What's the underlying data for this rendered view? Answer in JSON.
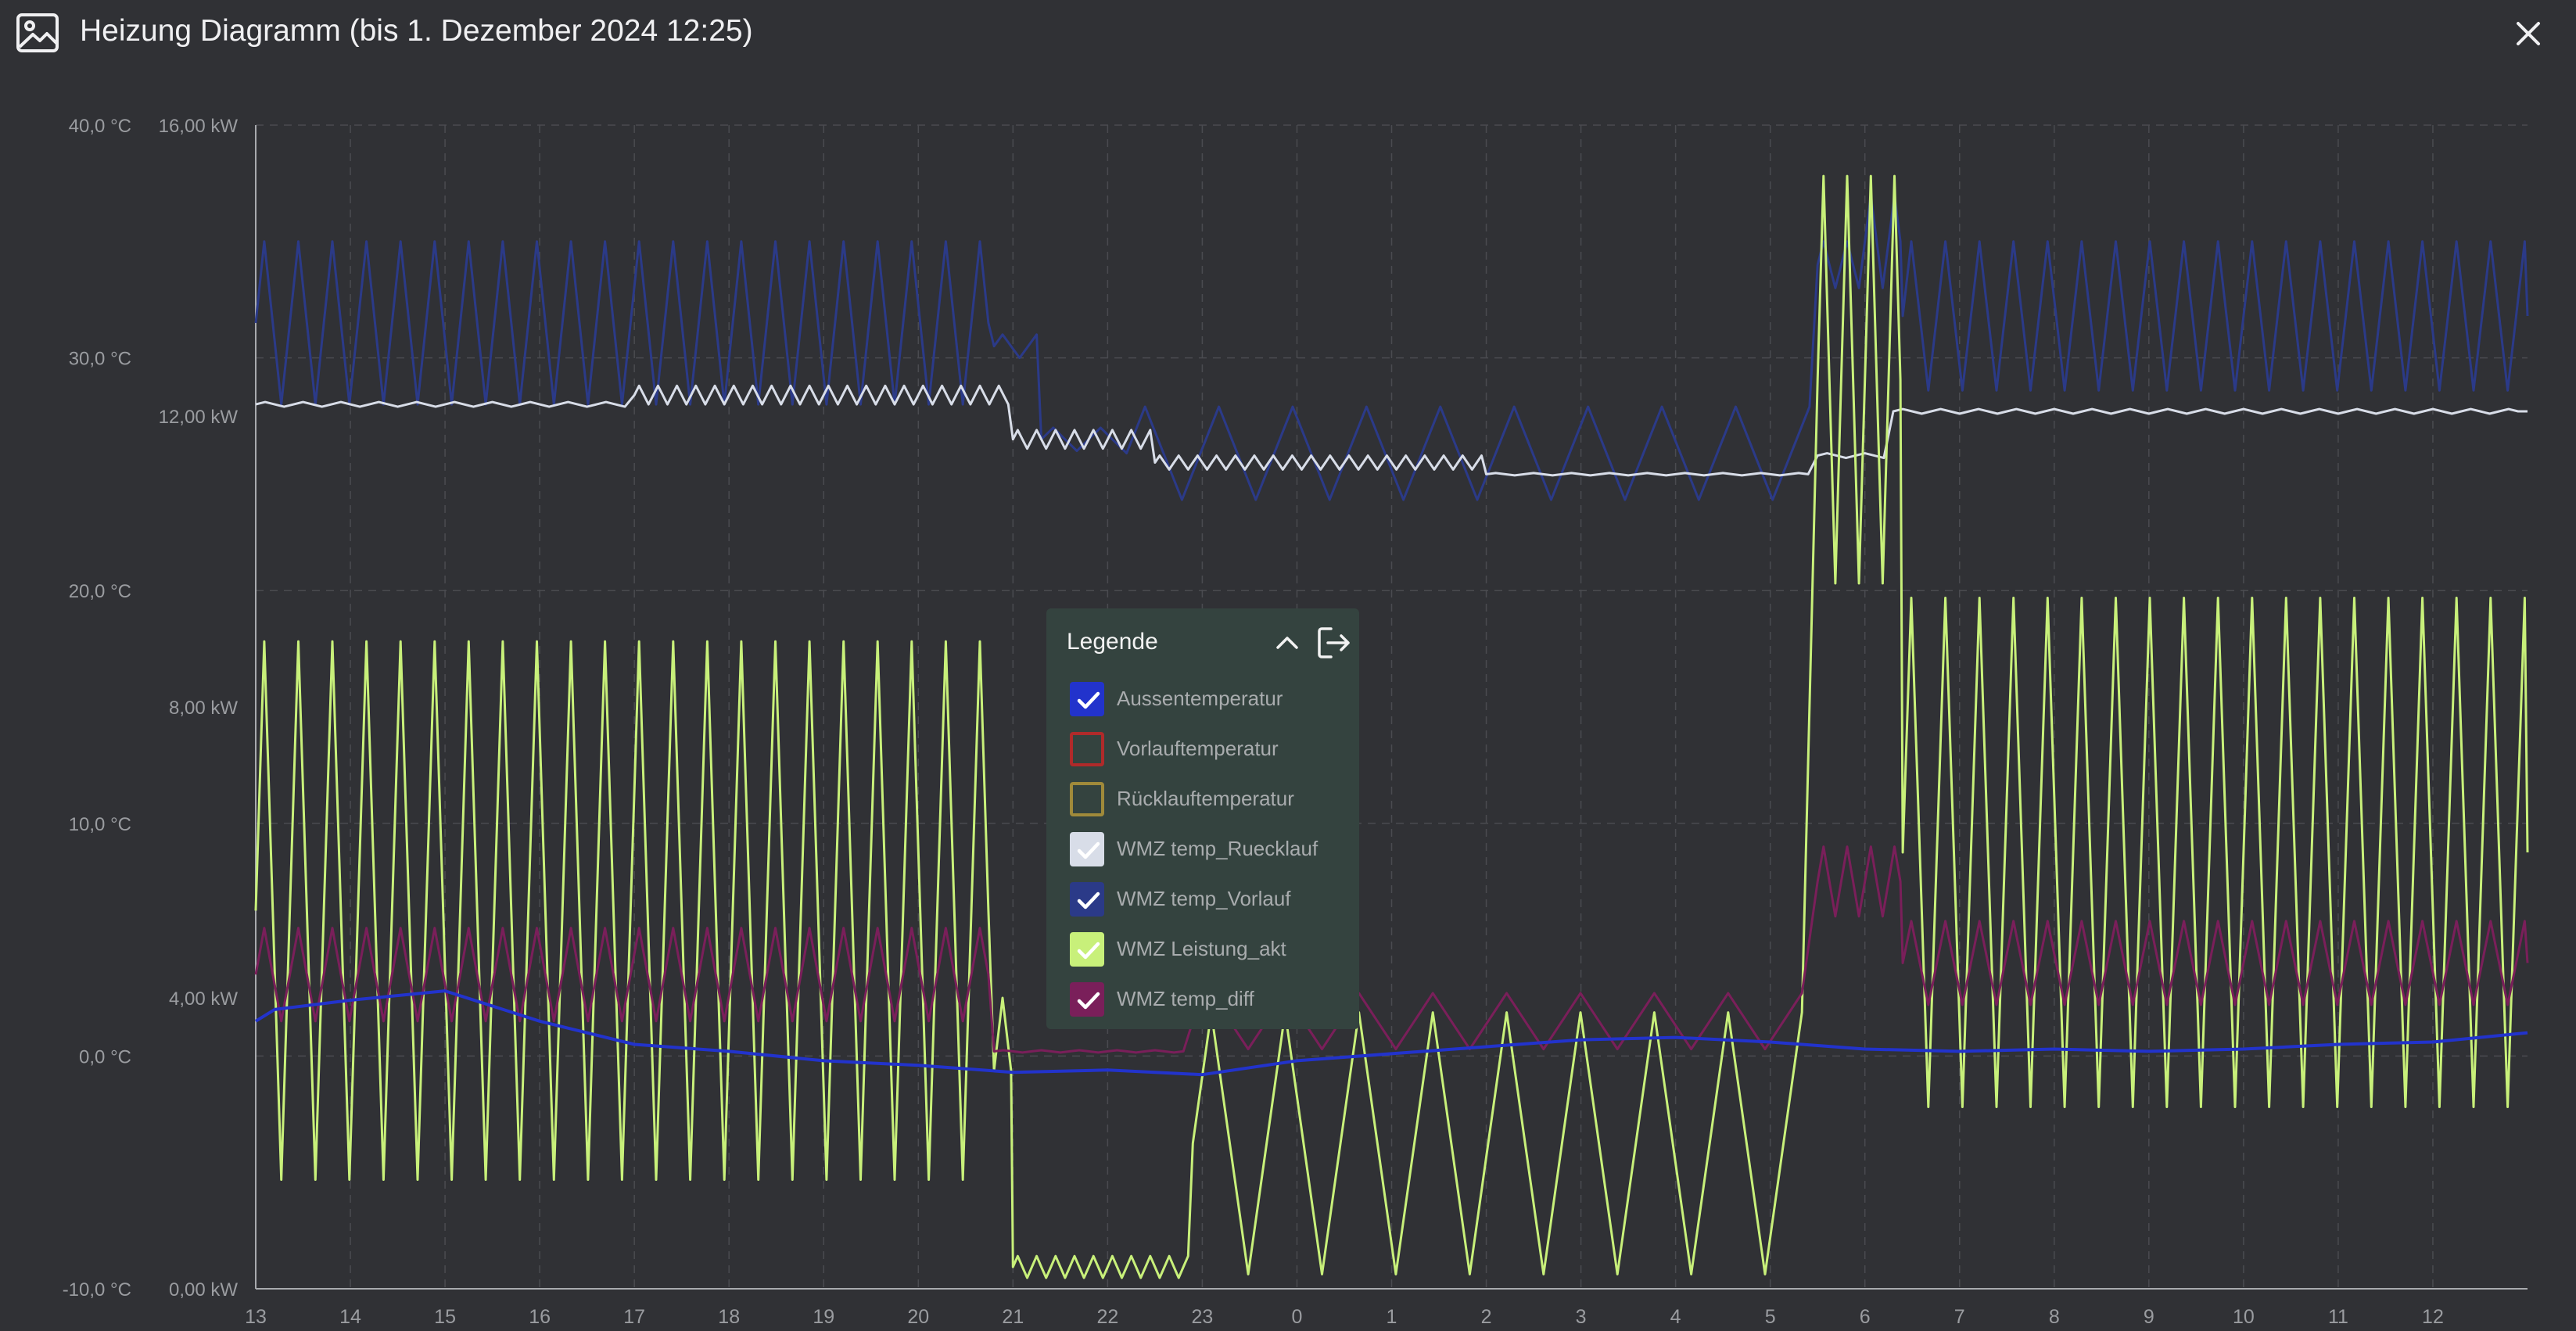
{
  "window": {
    "title": "Heizung Diagramm (bis 1. Dezember 2024 12:25)",
    "title_icon": "image-icon",
    "close_icon": "close-icon"
  },
  "legend": {
    "title": "Legende",
    "collapse_icon": "chevron-up-icon",
    "detach_icon": "exit-icon",
    "items": [
      {
        "label": "Aussentemperatur",
        "checked": true,
        "color": "#2233cc"
      },
      {
        "label": "Vorlauftemperatur",
        "checked": false,
        "color": "#b02a2a"
      },
      {
        "label": "Rücklauftemperatur",
        "checked": false,
        "color": "#a08a3a"
      },
      {
        "label": "WMZ temp_Ruecklauf",
        "checked": true,
        "color": "#d8dde8"
      },
      {
        "label": "WMZ temp_Vorlauf",
        "checked": true,
        "color": "#2b3a88"
      },
      {
        "label": "WMZ Leistung_akt",
        "checked": true,
        "color": "#c8f07a"
      },
      {
        "label": "WMZ temp_diff",
        "checked": true,
        "color": "#7a1f5a"
      }
    ]
  },
  "chart_data": {
    "type": "line",
    "grid": true,
    "x": [
      "13",
      "14",
      "15",
      "16",
      "17",
      "18",
      "19",
      "20",
      "21",
      "22",
      "23",
      "0",
      "1",
      "2",
      "3",
      "4",
      "5",
      "6",
      "7",
      "8",
      "9",
      "10",
      "11",
      "12"
    ],
    "y_axes": [
      {
        "unit": "°C",
        "ticks": [
          "40,0 °C",
          "30,0 °C",
          "20,0 °C",
          "10,0 °C",
          "0,0 °C",
          "-10,0 °C"
        ],
        "ylim": [
          -10,
          40
        ]
      },
      {
        "unit": "kW",
        "ticks": [
          "16,00 kW",
          "12,00 kW",
          "8,00 kW",
          "4,00 kW",
          "0,00 kW"
        ],
        "ylim": [
          0,
          16
        ]
      }
    ],
    "series": [
      {
        "name": "WMZ temp_Vorlauf",
        "axis": "C",
        "color": "#2b3a88",
        "segments": [
          {
            "from": 0,
            "to": 7.8,
            "base": 31.5,
            "amp": 3.5,
            "period": 0.36
          },
          {
            "from": 7.8,
            "to": 8.3,
            "base": 30.5,
            "amp": 0.5,
            "period": 0.36
          },
          {
            "from": 8.3,
            "to": 9.2,
            "base": 26.5,
            "amp": 0.5,
            "period": 0.5
          },
          {
            "from": 9.2,
            "to": 16.5,
            "base": 25.9,
            "amp": 2.0,
            "period": 0.78
          },
          {
            "from": 16.5,
            "to": 17.0,
            "base": 34.0,
            "amp": 1.0,
            "period": 0.25
          },
          {
            "from": 17.0,
            "to": 17.4,
            "base": 35.0,
            "amp": 2.0,
            "period": 0.25
          },
          {
            "from": 17.4,
            "to": 24,
            "base": 31.8,
            "amp": 3.2,
            "period": 0.36
          }
        ]
      },
      {
        "name": "WMZ temp_Ruecklauf",
        "axis": "C",
        "color": "#d8dde8",
        "segments": [
          {
            "from": 0,
            "to": 4,
            "base": 28.0,
            "amp": 0.1,
            "period": 0.4
          },
          {
            "from": 4,
            "to": 8.0,
            "base": 28.4,
            "amp": 0.4,
            "period": 0.2
          },
          {
            "from": 8.0,
            "to": 9.5,
            "base": 26.5,
            "amp": 0.4,
            "period": 0.2
          },
          {
            "from": 9.5,
            "to": 13.0,
            "base": 25.5,
            "amp": 0.3,
            "period": 0.2
          },
          {
            "from": 13.0,
            "to": 16.5,
            "base": 25.0,
            "amp": 0.05,
            "period": 0.4
          },
          {
            "from": 16.5,
            "to": 17.3,
            "base": 25.8,
            "amp": 0.1,
            "period": 0.4
          },
          {
            "from": 17.3,
            "to": 24,
            "base": 27.7,
            "amp": 0.1,
            "period": 0.4
          }
        ]
      },
      {
        "name": "WMZ Leistung_akt",
        "axis": "kW",
        "color": "#c8f07a",
        "segments": [
          {
            "from": 0,
            "to": 7.8,
            "base": 5.2,
            "amp": 3.7,
            "period": 0.36
          },
          {
            "from": 7.8,
            "to": 8.0,
            "base": 3.0,
            "amp": 1.0,
            "period": 0.36
          },
          {
            "from": 8.0,
            "to": 9.9,
            "base": 0.3,
            "amp": 0.15,
            "period": 0.2
          },
          {
            "from": 9.9,
            "to": 16.5,
            "base": 2.0,
            "amp": 1.8,
            "period": 0.78
          },
          {
            "from": 16.5,
            "to": 17.4,
            "base": 12.5,
            "amp": 2.8,
            "period": 0.25
          },
          {
            "from": 17.4,
            "to": 24,
            "base": 6.0,
            "amp": 3.5,
            "period": 0.36
          }
        ]
      },
      {
        "name": "WMZ temp_diff",
        "axis": "C",
        "color": "#7a1f5a",
        "segments": [
          {
            "from": 0,
            "to": 7.8,
            "base": 3.5,
            "amp": 2.0,
            "period": 0.36
          },
          {
            "from": 7.8,
            "to": 9.9,
            "base": 0.2,
            "amp": 0.05,
            "period": 0.4
          },
          {
            "from": 9.9,
            "to": 16.5,
            "base": 1.5,
            "amp": 1.2,
            "period": 0.78
          },
          {
            "from": 16.5,
            "to": 17.4,
            "base": 7.5,
            "amp": 1.5,
            "period": 0.25
          },
          {
            "from": 17.4,
            "to": 24,
            "base": 4.0,
            "amp": 1.8,
            "period": 0.36
          }
        ]
      },
      {
        "name": "Aussentemperatur",
        "axis": "C",
        "color": "#2233cc",
        "points": [
          [
            0,
            1.5
          ],
          [
            0.2,
            2.0
          ],
          [
            1.0,
            2.4
          ],
          [
            2.0,
            2.8
          ],
          [
            3.0,
            1.5
          ],
          [
            4.0,
            0.5
          ],
          [
            5.0,
            0.2
          ],
          [
            6.0,
            -0.2
          ],
          [
            7.0,
            -0.4
          ],
          [
            8.0,
            -0.7
          ],
          [
            9.0,
            -0.6
          ],
          [
            10.0,
            -0.8
          ],
          [
            11.0,
            -0.2
          ],
          [
            12.0,
            0.1
          ],
          [
            13.0,
            0.4
          ],
          [
            14.0,
            0.7
          ],
          [
            15.0,
            0.8
          ],
          [
            16.0,
            0.6
          ],
          [
            17.0,
            0.3
          ],
          [
            18.0,
            0.2
          ],
          [
            19.0,
            0.3
          ],
          [
            20.0,
            0.2
          ],
          [
            21.0,
            0.3
          ],
          [
            22.0,
            0.5
          ],
          [
            23.0,
            0.6
          ],
          [
            24.0,
            1.0
          ]
        ]
      }
    ]
  }
}
